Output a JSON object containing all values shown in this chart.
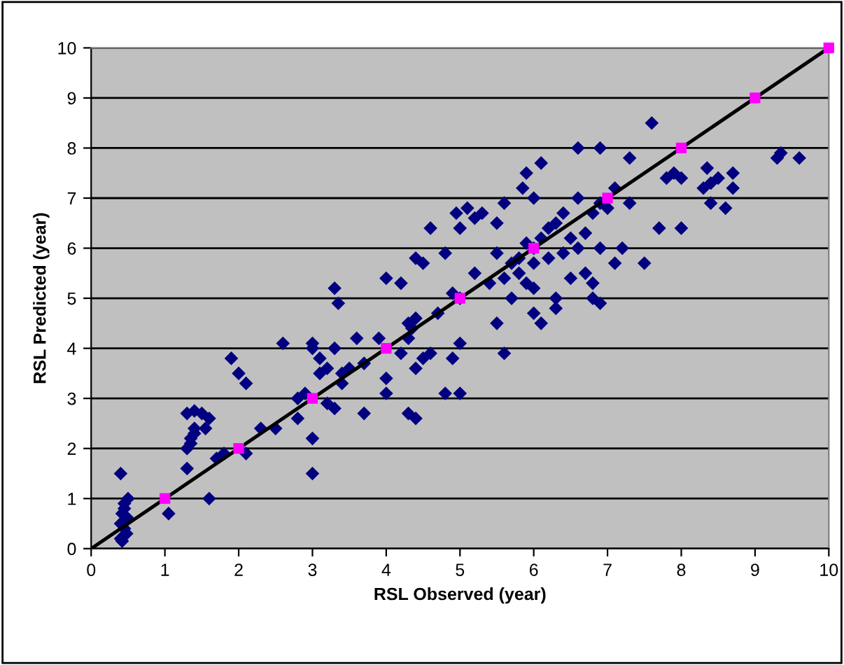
{
  "chart_data": {
    "type": "scatter",
    "xlabel": "RSL Observed (year)",
    "ylabel": "RSL Predicted (year)",
    "xlim": [
      0,
      10
    ],
    "ylim": [
      0,
      10
    ],
    "xticks": [
      0,
      1,
      2,
      3,
      4,
      5,
      6,
      7,
      8,
      9,
      10
    ],
    "yticks": [
      0,
      1,
      2,
      3,
      4,
      5,
      6,
      7,
      8,
      9,
      10
    ],
    "grid": "y",
    "series": [
      {
        "marker": "diamond",
        "color": "#000080",
        "x": [
          0.4,
          0.45,
          0.45,
          0.42,
          0.5,
          0.4,
          0.45,
          0.4,
          0.42,
          0.5,
          0.48,
          1.05,
          1.3,
          1.3,
          1.35,
          1.35,
          1.4,
          1.4,
          1.3,
          1.4,
          1.5,
          1.6,
          1.55,
          1.6,
          1.7,
          1.8,
          1.9,
          2.0,
          2.1,
          2.1,
          2.3,
          2.5,
          2.6,
          2.8,
          2.8,
          2.9,
          3.0,
          3.0,
          3.0,
          3.0,
          3.1,
          3.1,
          3.2,
          3.3,
          3.3,
          3.35,
          3.4,
          3.4,
          3.5,
          3.3,
          3.2,
          3.6,
          3.7,
          3.7,
          3.9,
          4.0,
          4.0,
          4.0,
          4.2,
          4.2,
          4.3,
          4.3,
          4.35,
          4.4,
          4.4,
          4.4,
          4.5,
          4.5,
          4.3,
          4.4,
          4.6,
          4.7,
          4.8,
          4.8,
          4.9,
          4.9,
          4.95,
          5.0,
          5.0,
          5.0,
          5.0,
          5.1,
          5.2,
          5.2,
          5.3,
          5.4,
          5.5,
          5.5,
          5.5,
          5.6,
          5.6,
          5.6,
          5.7,
          5.8,
          5.8,
          5.85,
          5.9,
          5.9,
          5.9,
          6.0,
          6.0,
          6.0,
          6.0,
          6.1,
          6.1,
          6.2,
          6.2,
          6.3,
          6.3,
          6.3,
          6.4,
          6.4,
          6.5,
          6.5,
          6.6,
          6.6,
          6.7,
          6.7,
          6.8,
          6.8,
          6.8,
          6.9,
          6.9,
          6.9,
          7.0,
          7.1,
          7.2,
          7.3,
          7.3,
          7.5,
          7.6,
          7.7,
          7.8,
          7.9,
          8.0,
          8.0,
          8.3,
          8.35,
          8.4,
          8.4,
          8.5,
          8.6,
          8.7,
          8.7,
          9.3,
          9.35,
          9.6,
          6.0,
          5.7,
          6.1,
          6.6,
          6.9,
          7.1,
          4.6
        ],
        "values": [
          1.5,
          0.9,
          0.8,
          0.7,
          0.6,
          0.5,
          0.4,
          0.2,
          0.15,
          1.0,
          0.3,
          0.7,
          1.6,
          2.0,
          2.1,
          2.2,
          2.3,
          2.4,
          2.7,
          2.75,
          2.7,
          2.6,
          2.4,
          1.0,
          1.8,
          1.9,
          3.8,
          3.5,
          3.3,
          1.9,
          2.4,
          2.4,
          4.1,
          3.0,
          2.6,
          3.1,
          1.5,
          2.2,
          4.1,
          4.0,
          3.8,
          3.5,
          3.6,
          5.2,
          4.0,
          4.9,
          3.5,
          3.3,
          3.6,
          2.8,
          2.9,
          4.2,
          3.7,
          2.7,
          4.2,
          3.4,
          3.1,
          5.4,
          5.3,
          3.9,
          4.5,
          4.2,
          4.4,
          4.6,
          3.6,
          5.8,
          5.7,
          3.8,
          2.7,
          2.6,
          3.9,
          4.7,
          5.9,
          3.1,
          3.8,
          5.1,
          6.7,
          6.4,
          5.0,
          4.1,
          3.1,
          6.8,
          6.6,
          5.5,
          6.7,
          5.3,
          6.5,
          5.9,
          4.5,
          6.9,
          5.4,
          3.9,
          5.7,
          5.8,
          5.5,
          7.2,
          7.5,
          6.1,
          5.3,
          7.0,
          6.0,
          5.2,
          4.7,
          4.5,
          7.7,
          6.4,
          5.8,
          6.5,
          5.0,
          4.8,
          6.7,
          5.9,
          6.2,
          5.4,
          8.0,
          7.0,
          6.3,
          5.5,
          6.7,
          5.3,
          5.0,
          8.0,
          6.9,
          4.9,
          6.8,
          5.7,
          6.0,
          7.8,
          6.9,
          5.7,
          8.5,
          6.4,
          7.4,
          7.5,
          7.4,
          6.4,
          7.2,
          7.6,
          7.3,
          6.9,
          7.4,
          6.8,
          7.5,
          7.2,
          7.8,
          7.9,
          7.8,
          5.7,
          5.0,
          6.2,
          6.0,
          6.0,
          7.2,
          6.4
        ]
      },
      {
        "marker": "square",
        "color": "#ff00ff",
        "x": [
          1,
          2,
          3,
          4,
          5,
          6,
          7,
          8,
          9,
          10
        ],
        "values": [
          1,
          2,
          3,
          4,
          5,
          6,
          7,
          8,
          9,
          10
        ]
      },
      {
        "type": "line",
        "marker": "none",
        "color": "#000000",
        "x": [
          0,
          10
        ],
        "values": [
          0,
          10
        ]
      }
    ]
  }
}
